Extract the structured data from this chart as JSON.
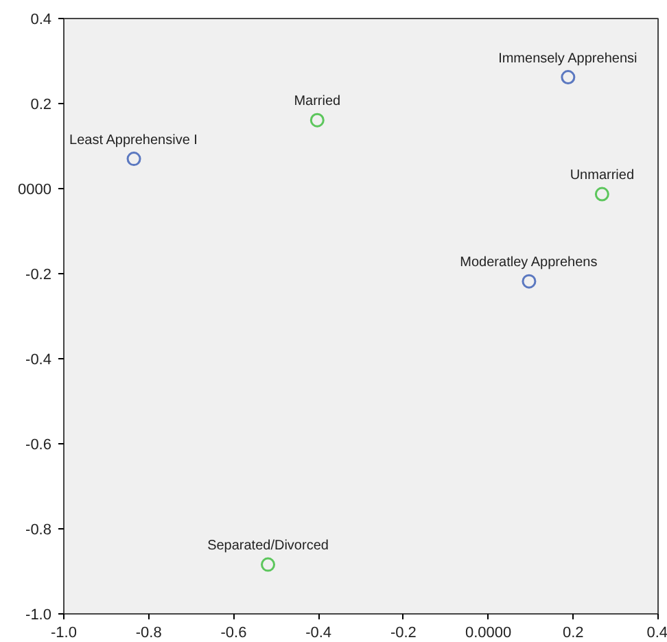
{
  "chart_data": {
    "type": "scatter",
    "marker": "circle",
    "grid": false,
    "series": [
      {
        "color": "#5b78c0",
        "x": [
          -0.835,
          0.188,
          0.096
        ],
        "values": [
          0.07,
          0.262,
          -0.218
        ]
      },
      {
        "color": "#5cc65c",
        "x": [
          -0.403,
          0.268,
          -0.519
        ],
        "values": [
          0.161,
          -0.013,
          -0.884
        ]
      }
    ],
    "annotations": [
      {
        "text": "Least Apprehensive I",
        "x": -0.835,
        "y": 0.07
      },
      {
        "text": "Immensely Apprehensi",
        "x": 0.188,
        "y": 0.262
      },
      {
        "text": "Moderatley Apprehens",
        "x": 0.096,
        "y": -0.218
      },
      {
        "text": "Married",
        "x": -0.403,
        "y": 0.161
      },
      {
        "text": "Unmarried",
        "x": 0.268,
        "y": -0.013
      },
      {
        "text": "Separated/Divorced",
        "x": -0.519,
        "y": -0.884
      }
    ],
    "xlim": [
      -1.0,
      0.4
    ],
    "ylim": [
      -1.0,
      0.4
    ],
    "xticks": [
      {
        "value": -1.0,
        "label": "-1.0"
      },
      -0.8,
      -0.6,
      -0.4,
      -0.2,
      {
        "value": 0,
        "label": "0.0000"
      },
      0.2,
      0.4
    ],
    "yticks": [
      {
        "value": -1.0,
        "label": "-1.0"
      },
      -0.8,
      -0.6,
      -0.4,
      -0.2,
      {
        "value": 0,
        "label": "0000"
      },
      0.2,
      0.4
    ]
  }
}
